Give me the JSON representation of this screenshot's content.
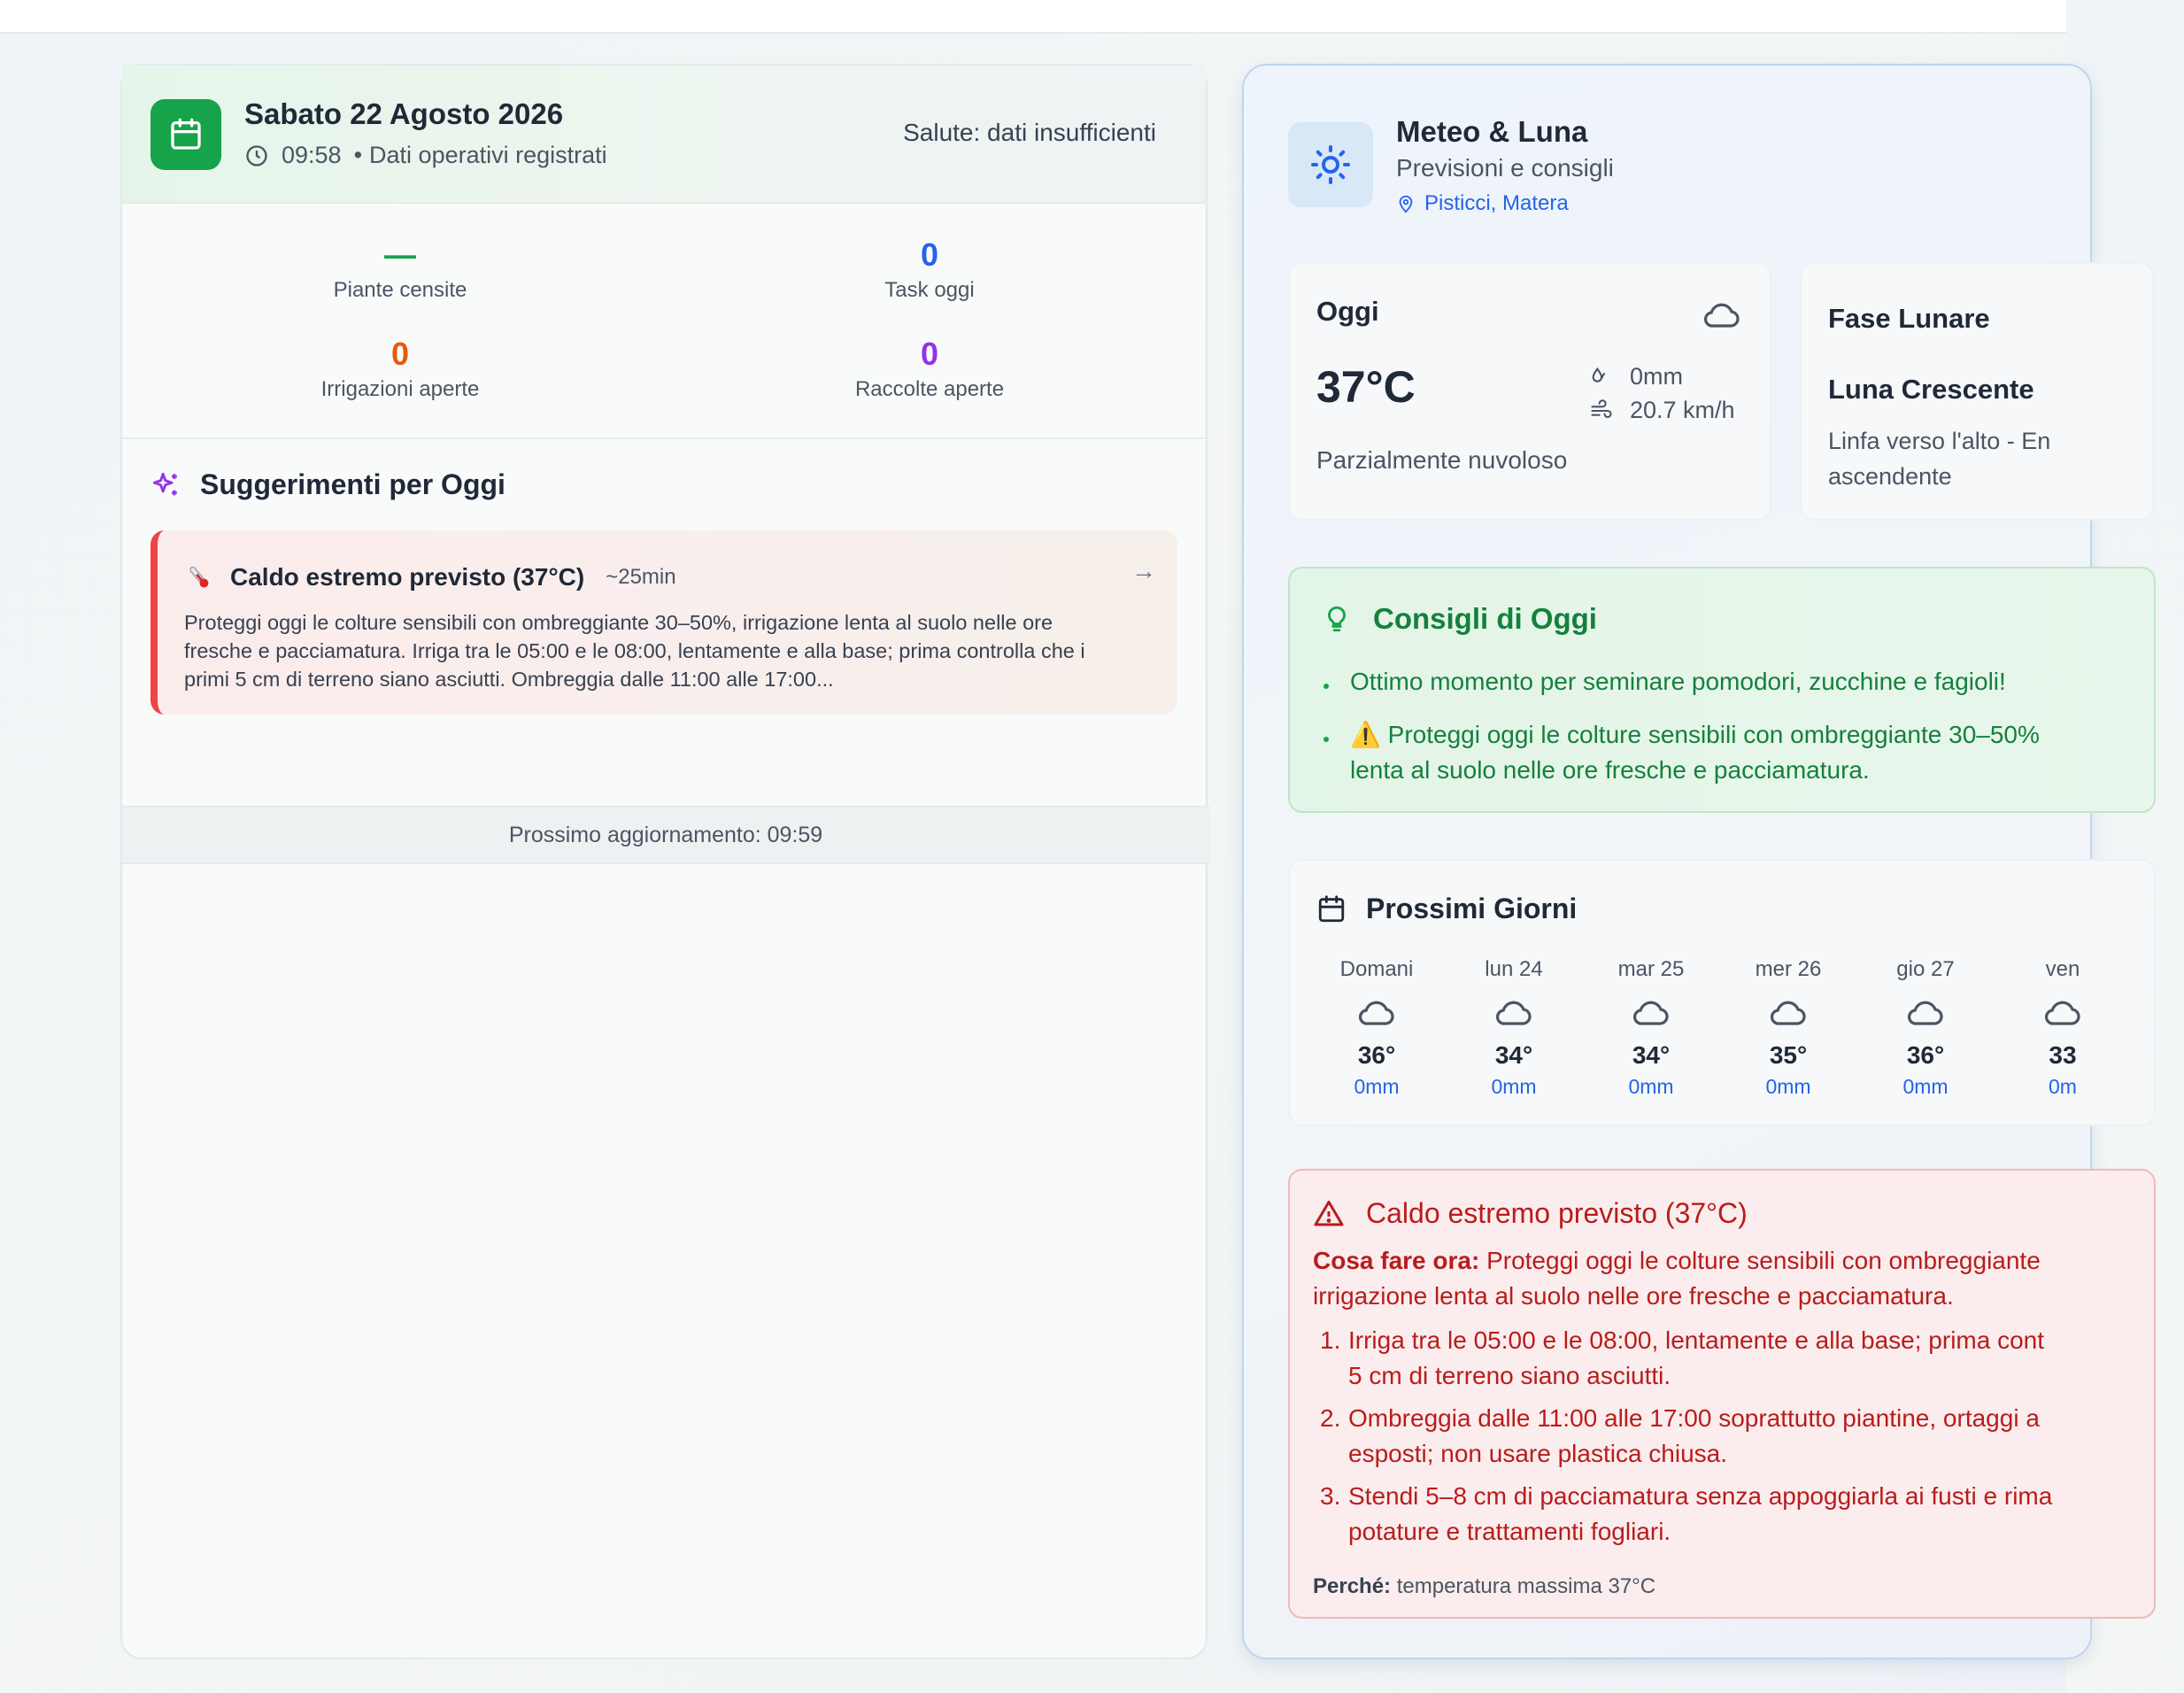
{
  "left": {
    "date": "Sabato 22 Agosto 2026",
    "time": "09:58",
    "separator": "•",
    "status": "Dati operativi registrati",
    "health": "Salute: dati insufficienti",
    "stats": [
      {
        "value": "—",
        "label": "Piante censite",
        "color": "#16a34a"
      },
      {
        "value": "0",
        "label": "Task oggi",
        "color": "#2563eb"
      },
      {
        "value": "0",
        "label": "Irrigazioni aperte",
        "color": "#ea580c"
      },
      {
        "value": "0",
        "label": "Raccolte aperte",
        "color": "#9333ea"
      }
    ],
    "suggestions_title": "Suggerimenti per Oggi",
    "suggestion": {
      "title": "Caldo estremo previsto (37°C)",
      "duration": "~25min",
      "arrow": "→",
      "text": "Proteggi oggi le colture sensibili con ombreggiante 30–50%, irrigazione lenta al suolo nelle ore fresche e pacciamatura. Irriga tra le 05:00 e le 08:00, lentamente e alla base; prima controlla che i primi 5 cm di terreno siano asciutti. Ombreggia dalle 11:00 alle 17:00..."
    },
    "next_update": "Prossimo aggiornamento: 09:59"
  },
  "right": {
    "title": "Meteo & Luna",
    "subtitle": "Previsioni e consigli",
    "location": "Pisticci, Matera",
    "today": {
      "label": "Oggi",
      "temp": "37°C",
      "rain": "0mm",
      "wind": "20.7 km/h",
      "condition": "Parzialmente nuvoloso"
    },
    "moon": {
      "label": "Fase Lunare",
      "phase": "Luna Crescente",
      "desc_line1": "Linfa verso l'alto - En",
      "desc_line2": "ascendente"
    },
    "tips": {
      "title": "Consigli di Oggi",
      "items": [
        "Ottimo momento per seminare pomodori, zucchine e fagioli!",
        "⚠️ Proteggi oggi le colture sensibili con ombreggiante 30–50%",
        "lenta al suolo nelle ore fresche e pacciamatura."
      ]
    },
    "days": {
      "title": "Prossimi Giorni",
      "list": [
        {
          "name": "Domani",
          "temp": "36°",
          "rain": "0mm"
        },
        {
          "name": "lun 24",
          "temp": "34°",
          "rain": "0mm"
        },
        {
          "name": "mar 25",
          "temp": "34°",
          "rain": "0mm"
        },
        {
          "name": "mer 26",
          "temp": "35°",
          "rain": "0mm"
        },
        {
          "name": "gio 27",
          "temp": "36°",
          "rain": "0mm"
        },
        {
          "name": "ven",
          "temp": "33",
          "rain": "0m"
        }
      ]
    },
    "warning": {
      "title": "Caldo estremo previsto (37°C)",
      "now_label": "Cosa fare ora:",
      "now_line1": "Proteggi oggi le colture sensibili con ombreggiante",
      "now_line2": "irrigazione lenta al suolo nelle ore fresche e pacciamatura.",
      "steps": [
        {
          "num": "1.",
          "l1": "Irriga tra le 05:00 e le 08:00, lentamente e alla base; prima cont",
          "l2": "5 cm di terreno siano asciutti."
        },
        {
          "num": "2.",
          "l1": "Ombreggia dalle 11:00 alle 17:00 soprattutto piantine, ortaggi a",
          "l2": "esposti; non usare plastica chiusa."
        },
        {
          "num": "3.",
          "l1": "Stendi 5–8 cm di pacciamatura senza appoggiarla ai fusti e rima",
          "l2": "potature e trattamenti fogliari."
        }
      ],
      "why_label": "Perché:",
      "why_text": "temperatura massima 37°C"
    }
  },
  "colors": {
    "green": "#16a34a",
    "blue": "#2563eb",
    "orange": "#ea580c",
    "purple": "#9333ea",
    "red": "#b91c1c"
  }
}
